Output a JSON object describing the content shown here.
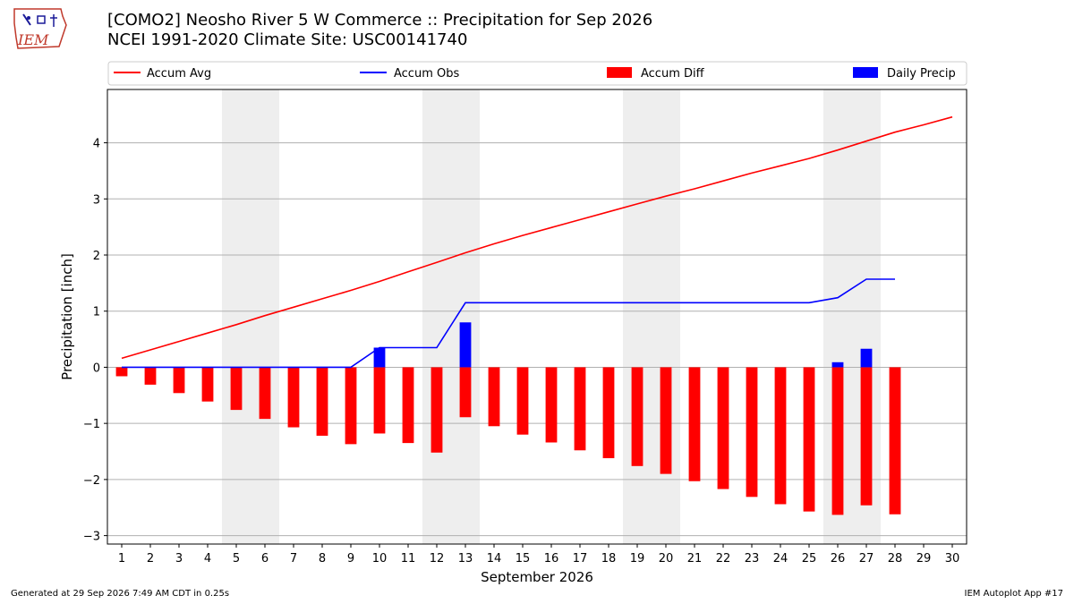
{
  "header": {
    "title_line1": "[COMO2] Neosho River 5 W Commerce :: Precipitation for Sep 2026",
    "title_line2": "NCEI 1991-2020 Climate Site: USC00141740",
    "logo_text": "IEM"
  },
  "footer": {
    "generated": "Generated at 29 Sep 2026 7:49 AM CDT in 0.25s",
    "app": "IEM Autoplot App #17"
  },
  "colors": {
    "avg": "#ff0000",
    "obs": "#0000ff",
    "diff": "#ff0000",
    "daily": "#0000ff",
    "weekend": "#eeeeee"
  },
  "chart_data": {
    "type": "bar",
    "xlabel": "September 2026",
    "ylabel": "Precipitation [inch]",
    "xlim": [
      0.5,
      30.5
    ],
    "ylim": [
      -3.15,
      4.95
    ],
    "yticks": [
      -3,
      -2,
      -1,
      0,
      1,
      2,
      3,
      4
    ],
    "ytick_labels": [
      "−3",
      "−2",
      "−1",
      "0",
      "1",
      "2",
      "3",
      "4"
    ],
    "days": [
      1,
      2,
      3,
      4,
      5,
      6,
      7,
      8,
      9,
      10,
      11,
      12,
      13,
      14,
      15,
      16,
      17,
      18,
      19,
      20,
      21,
      22,
      23,
      24,
      25,
      26,
      27,
      28,
      29,
      30
    ],
    "weekend_spans": [
      [
        5,
        6
      ],
      [
        12,
        13
      ],
      [
        19,
        20
      ],
      [
        26,
        27
      ]
    ],
    "grid": "horizontal",
    "legend_position": "top",
    "legend": [
      "Accum Avg",
      "Accum Obs",
      "Accum Diff",
      "Daily Precip"
    ],
    "series": [
      {
        "name": "Accum Avg",
        "kind": "line",
        "x": [
          1,
          2,
          3,
          4,
          5,
          6,
          7,
          8,
          9,
          10,
          11,
          12,
          13,
          14,
          15,
          16,
          17,
          18,
          19,
          20,
          21,
          22,
          23,
          24,
          25,
          26,
          27,
          28,
          29,
          30
        ],
        "values": [
          0.16,
          0.31,
          0.46,
          0.61,
          0.76,
          0.92,
          1.07,
          1.22,
          1.37,
          1.53,
          1.7,
          1.87,
          2.04,
          2.2,
          2.35,
          2.49,
          2.63,
          2.77,
          2.91,
          3.05,
          3.18,
          3.32,
          3.46,
          3.59,
          3.72,
          3.87,
          4.03,
          4.19,
          4.32,
          4.46
        ]
      },
      {
        "name": "Accum Obs",
        "kind": "line",
        "x": [
          1,
          2,
          3,
          4,
          5,
          6,
          7,
          8,
          9,
          10,
          11,
          12,
          13,
          14,
          15,
          16,
          17,
          18,
          19,
          20,
          21,
          22,
          23,
          24,
          25,
          26,
          27,
          28
        ],
        "values": [
          0.0,
          0.0,
          0.0,
          0.0,
          0.0,
          0.0,
          0.0,
          0.0,
          0.0,
          0.35,
          0.35,
          0.35,
          1.15,
          1.15,
          1.15,
          1.15,
          1.15,
          1.15,
          1.15,
          1.15,
          1.15,
          1.15,
          1.15,
          1.15,
          1.15,
          1.24,
          1.57,
          1.57
        ]
      },
      {
        "name": "Accum Diff",
        "kind": "bar",
        "x": [
          1,
          2,
          3,
          4,
          5,
          6,
          7,
          8,
          9,
          10,
          11,
          12,
          13,
          14,
          15,
          16,
          17,
          18,
          19,
          20,
          21,
          22,
          23,
          24,
          25,
          26,
          27,
          28
        ],
        "values": [
          -0.16,
          -0.31,
          -0.46,
          -0.61,
          -0.76,
          -0.92,
          -1.07,
          -1.22,
          -1.37,
          -1.18,
          -1.35,
          -1.52,
          -0.89,
          -1.05,
          -1.2,
          -1.34,
          -1.48,
          -1.62,
          -1.76,
          -1.9,
          -2.03,
          -2.17,
          -2.31,
          -2.44,
          -2.57,
          -2.63,
          -2.46,
          -2.62
        ]
      },
      {
        "name": "Daily Precip",
        "kind": "bar",
        "x": [
          10,
          13,
          26,
          27
        ],
        "values": [
          0.35,
          0.8,
          0.09,
          0.33
        ]
      }
    ]
  }
}
